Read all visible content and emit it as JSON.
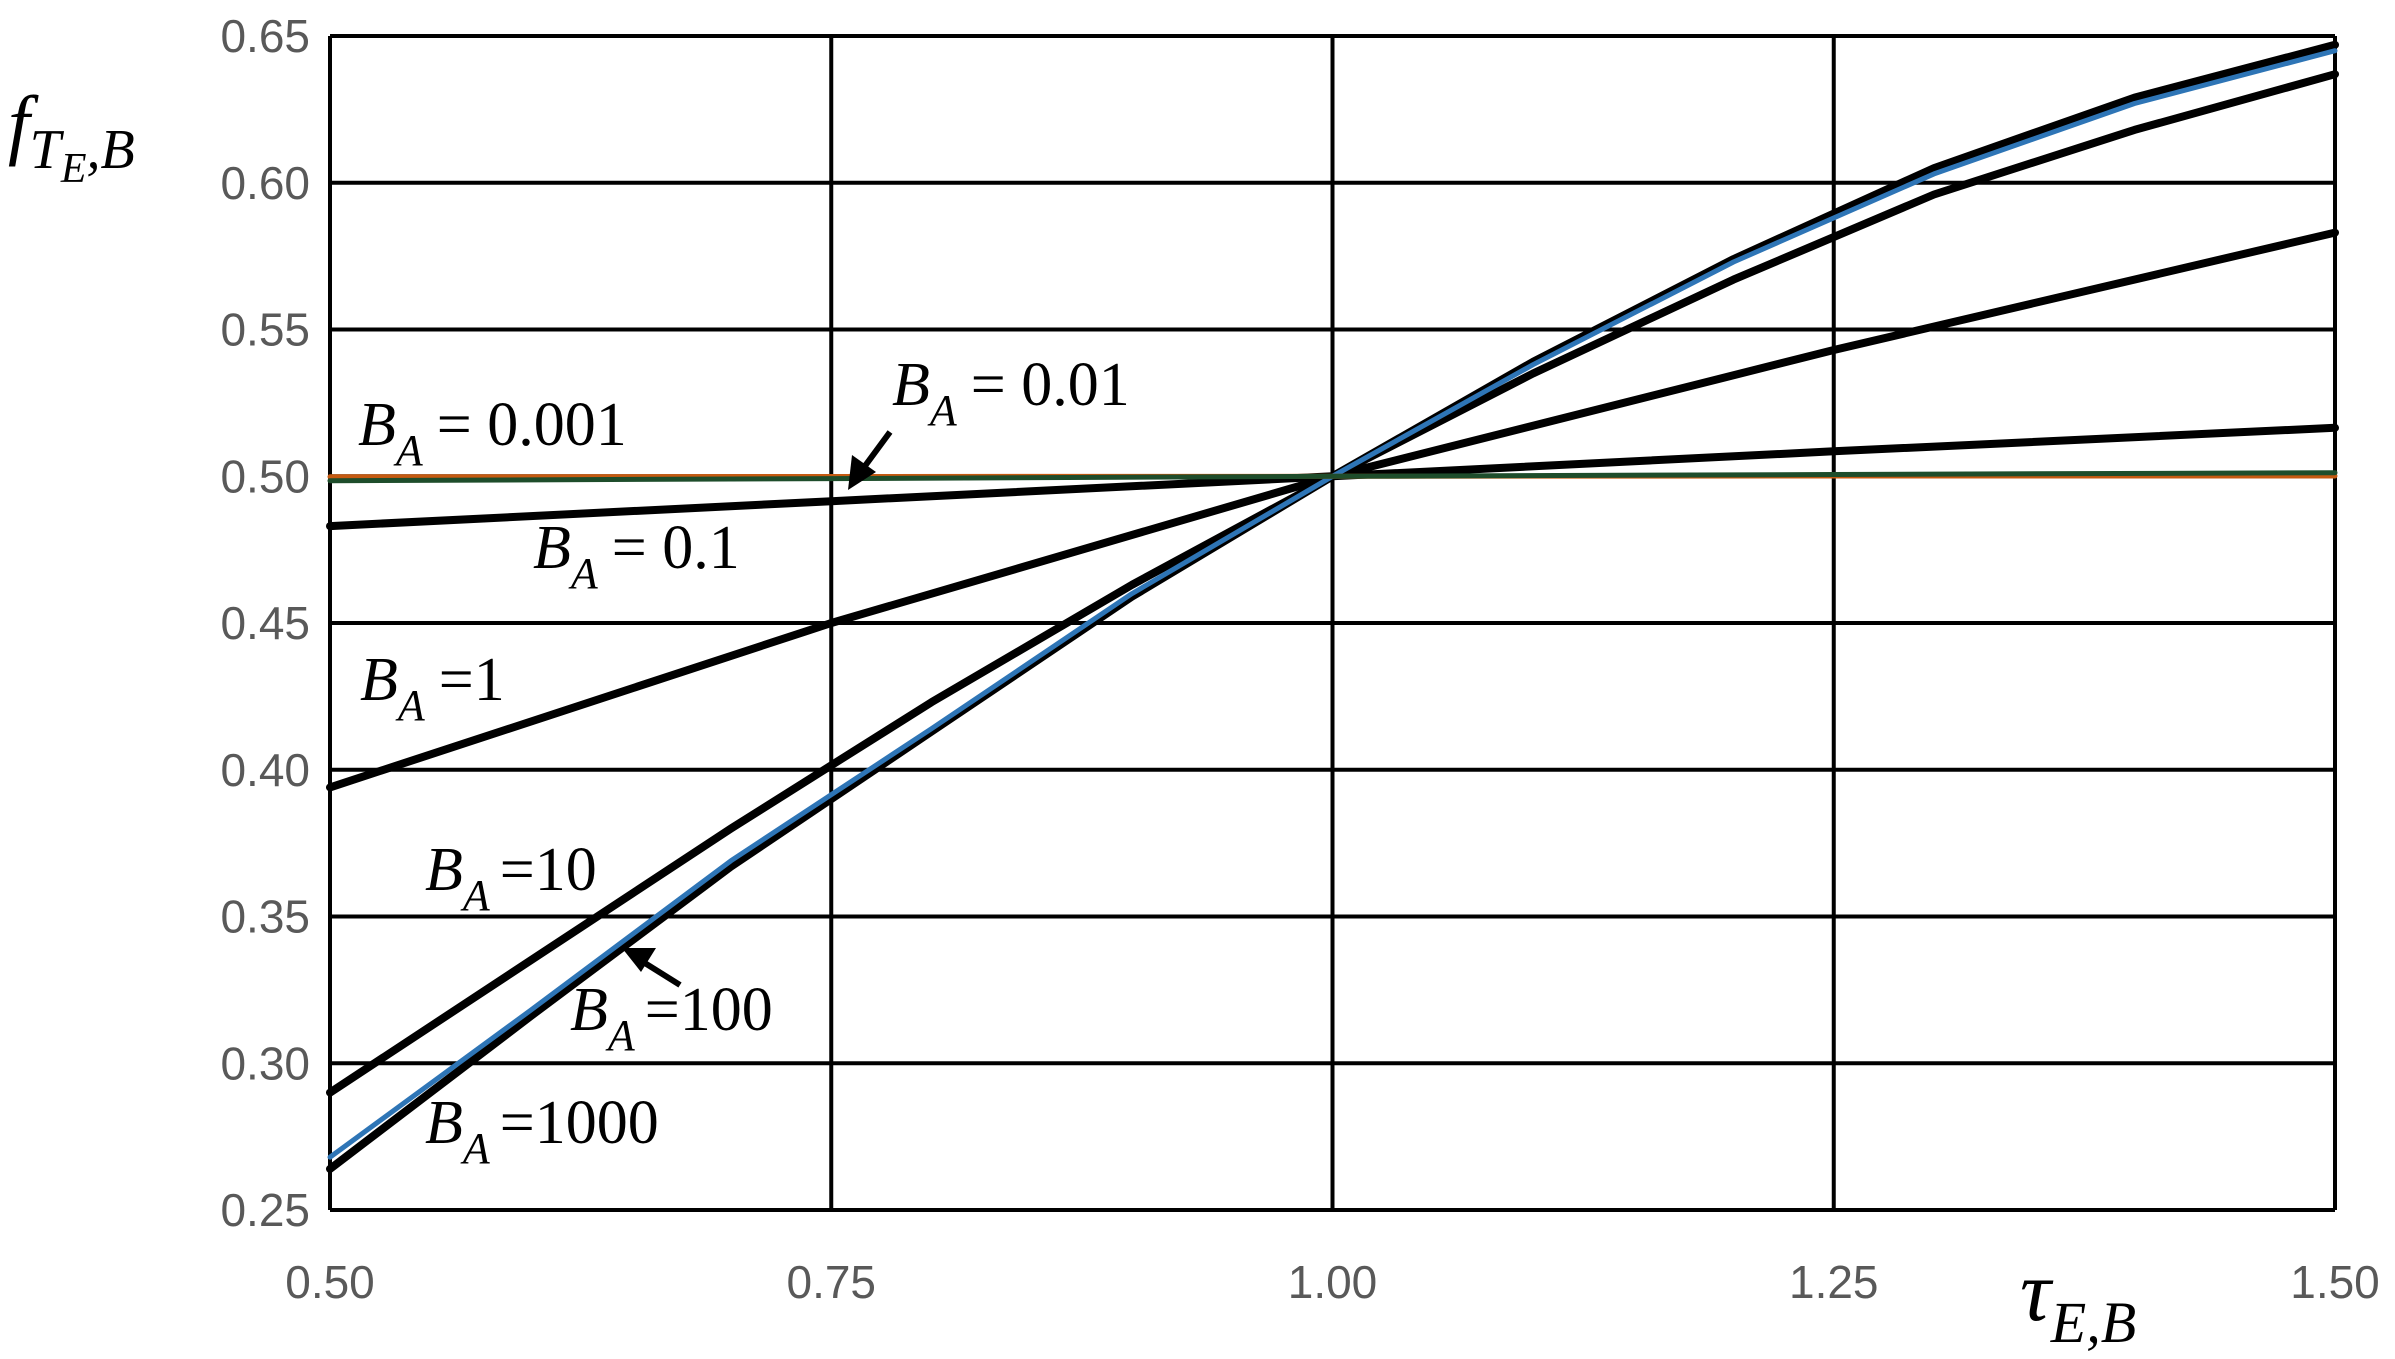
{
  "chart_data": {
    "type": "line",
    "title": "",
    "xlabel": {
      "main": "τ",
      "sub": "E,B"
    },
    "ylabel": {
      "main": "f",
      "sub": "T",
      "subsub": "E",
      "tail": ",B"
    },
    "xlim": [
      0.5,
      1.5
    ],
    "ylim": [
      0.25,
      0.65
    ],
    "x_ticks": [
      "0.50",
      "0.75",
      "1.00",
      "1.25",
      "1.50"
    ],
    "y_ticks": [
      "0.25",
      "0.30",
      "0.35",
      "0.40",
      "0.45",
      "0.50",
      "0.55",
      "0.60",
      "0.65"
    ],
    "grid": true,
    "legend": "none",
    "series": [
      {
        "name": "B_A = 0.001",
        "color": "#c55a11",
        "x": [
          0.5,
          0.75,
          1.0,
          1.25,
          1.5
        ],
        "y": [
          0.4998,
          0.4999,
          0.5,
          0.5001,
          0.5001
        ]
      },
      {
        "name": "B_A = 0.01",
        "color": "#1e4d2b",
        "x": [
          0.5,
          0.75,
          1.0,
          1.25,
          1.5
        ],
        "y": [
          0.4985,
          0.4992,
          0.5,
          0.5006,
          0.5012
        ]
      },
      {
        "name": "B_A = 0.1",
        "color": "#000000",
        "x": [
          0.5,
          0.75,
          1.0,
          1.25,
          1.5
        ],
        "y": [
          0.483,
          0.4915,
          0.5,
          0.5085,
          0.5165
        ]
      },
      {
        "name": "B_A = 1",
        "color": "#000000",
        "x": [
          0.5,
          0.75,
          1.0,
          1.25,
          1.5
        ],
        "y": [
          0.394,
          0.45,
          0.5,
          0.543,
          0.583
        ]
      },
      {
        "name": "B_A = 10",
        "color": "#000000",
        "x": [
          0.5,
          0.6,
          0.7,
          0.8,
          0.9,
          1.0,
          1.1,
          1.2,
          1.3,
          1.4,
          1.5
        ],
        "y": [
          0.29,
          0.335,
          0.38,
          0.423,
          0.463,
          0.5,
          0.535,
          0.567,
          0.596,
          0.618,
          0.637
        ]
      },
      {
        "name": "B_A = 100",
        "color": "#2e75b6",
        "x": [
          0.5,
          0.6,
          0.7,
          0.8,
          0.9,
          1.0,
          1.1,
          1.2,
          1.3,
          1.4,
          1.5
        ],
        "y": [
          0.268,
          0.318,
          0.369,
          0.414,
          0.46,
          0.5,
          0.538,
          0.573,
          0.603,
          0.627,
          0.645
        ]
      },
      {
        "name": "B_A = 1000",
        "color": "#000000",
        "x": [
          0.5,
          0.6,
          0.7,
          0.8,
          0.9,
          1.0,
          1.1,
          1.2,
          1.3,
          1.4,
          1.5
        ],
        "y": [
          0.264,
          0.316,
          0.367,
          0.413,
          0.459,
          0.5,
          0.539,
          0.574,
          0.605,
          0.629,
          0.647
        ]
      }
    ],
    "annotations": [
      {
        "id": "ba0001",
        "sub": "A",
        "text": "= 0.001"
      },
      {
        "id": "ba001",
        "sub": "A",
        "text": "= 0.01"
      },
      {
        "id": "ba01",
        "sub": "A",
        "text": "= 0.1"
      },
      {
        "id": "ba1",
        "sub": "A",
        "text": "=1"
      },
      {
        "id": "ba10",
        "sub": "A",
        "text": "=10"
      },
      {
        "id": "ba100",
        "sub": "A",
        "text": "=100"
      },
      {
        "id": "ba1000",
        "sub": "A",
        "text": "=1000"
      }
    ]
  }
}
